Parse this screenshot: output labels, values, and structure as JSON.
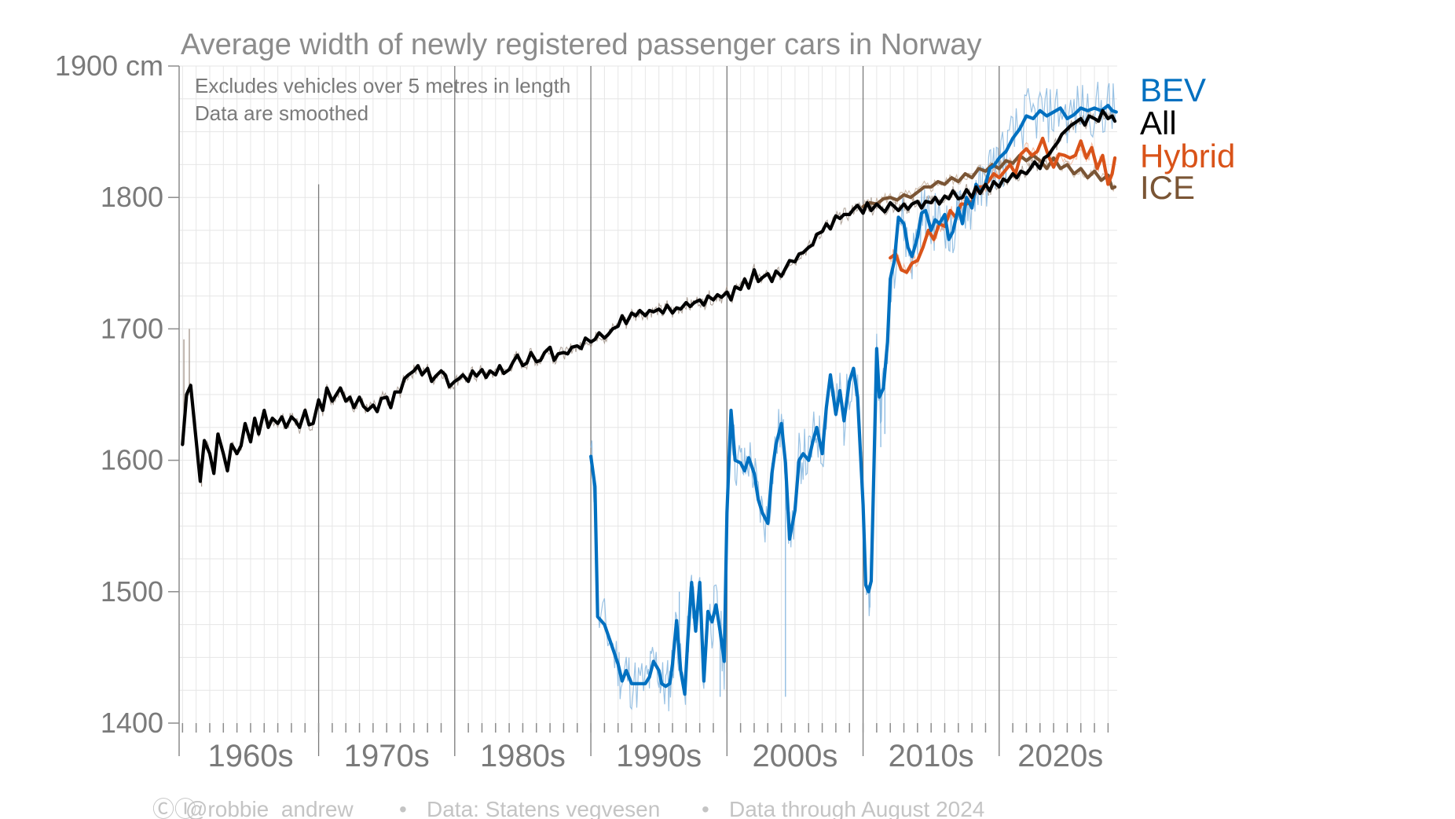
{
  "chart_data": {
    "type": "line",
    "title": "Average width of newly registered passenger cars in Norway",
    "notes": [
      "Excludes vehicles over 5 metres in length",
      "Data are smoothed"
    ],
    "y_unit": "cm",
    "y_tick_labels": [
      "1900 cm",
      "1800",
      "1700",
      "1600",
      "1500",
      "1400"
    ],
    "y_tick_values": [
      1900,
      1800,
      1700,
      1600,
      1500,
      1400
    ],
    "ylim": [
      1400,
      1900
    ],
    "xlim": [
      1955.75,
      2024.67
    ],
    "x_tick_labels": [
      "1960s",
      "1970s",
      "1980s",
      "1990s",
      "2000s",
      "2010s",
      "2020s"
    ],
    "x_tick_centers": [
      1961,
      1971,
      1981,
      1991,
      2001,
      2011,
      2020.5
    ],
    "decade_lines": [
      1966,
      1976,
      1986,
      1996,
      2006,
      2016
    ],
    "grid": true,
    "legend_position": "right",
    "series": [
      {
        "name": "BEV",
        "color": "#0070c0",
        "x": [
          1986,
          1986.3,
          1986.5,
          1987,
          1987.5,
          1988,
          1988.3,
          1988.6,
          1989,
          1989.5,
          1990,
          1990.3,
          1990.6,
          1991,
          1991.2,
          1991.5,
          1991.8,
          1992,
          1992.3,
          1992.6,
          1992.9,
          1993.1,
          1993.4,
          1993.7,
          1994,
          1994.3,
          1994.6,
          1994.9,
          1995.2,
          1995.5,
          1995.8,
          1996,
          1996.3,
          1996.6,
          1997,
          1997.3,
          1997.6,
          1998,
          1998.3,
          1998.6,
          1999,
          1999.3,
          1999.6,
          2000,
          2000.3,
          2000.6,
          2001,
          2001.3,
          2001.6,
          2002,
          2002.3,
          2002.6,
          2003,
          2003.3,
          2003.6,
          2004,
          2004.3,
          2004.6,
          2005,
          2005.3,
          2005.6,
          2006,
          2006.2,
          2006.4,
          2006.6,
          2006.8,
          2007,
          2007.2,
          2007.5,
          2007.8,
          2008,
          2008.3,
          2008.6,
          2009,
          2009.3,
          2009.6,
          2010,
          2010.3,
          2010.6,
          2011,
          2011.3,
          2011.6,
          2012,
          2012.3,
          2012.6,
          2013,
          2013.3,
          2013.6,
          2014,
          2014.3,
          2014.6,
          2015,
          2015.3,
          2015.6,
          2016,
          2016.5,
          2017,
          2017.5,
          2018,
          2018.5,
          2019,
          2019.5,
          2020,
          2020.5,
          2021,
          2021.5,
          2022,
          2022.5,
          2023,
          2023.5,
          2024,
          2024.3,
          2024.6
        ],
        "y": [
          1603,
          1580,
          1481,
          1475,
          1460,
          1445,
          1432,
          1440,
          1430,
          1430,
          1430,
          1435,
          1447,
          1440,
          1430,
          1428,
          1430,
          1445,
          1478,
          1440,
          1422,
          1460,
          1507,
          1470,
          1507,
          1432,
          1485,
          1477,
          1490,
          1470,
          1447,
          1560,
          1638,
          1600,
          1598,
          1592,
          1602,
          1590,
          1570,
          1560,
          1552,
          1590,
          1612,
          1628,
          1598,
          1540,
          1562,
          1600,
          1605,
          1600,
          1614,
          1625,
          1605,
          1640,
          1665,
          1635,
          1653,
          1630,
          1660,
          1670,
          1648,
          1566,
          1505,
          1500,
          1508,
          1595,
          1685,
          1648,
          1655,
          1690,
          1738,
          1752,
          1785,
          1780,
          1762,
          1755,
          1770,
          1788,
          1790,
          1775,
          1783,
          1780,
          1787,
          1768,
          1774,
          1792,
          1780,
          1800,
          1792,
          1810,
          1804,
          1810,
          1822,
          1824,
          1830,
          1835,
          1845,
          1852,
          1862,
          1860,
          1866,
          1862,
          1865,
          1868,
          1860,
          1863,
          1868,
          1866,
          1868,
          1866,
          1870,
          1866,
          1865
        ],
        "raw_extremes": [
          [
            1992.5,
            1500
          ],
          [
            1995.5,
            1420
          ],
          [
            2000.3,
            1420
          ],
          [
            2006.5,
            1488
          ],
          [
            2007.3,
            1610
          ],
          [
            2007.6,
            1620
          ],
          [
            2016.3,
            1808
          ]
        ]
      },
      {
        "name": "All",
        "color": "#000000",
        "x": [
          1956.0,
          1956.3,
          1956.6,
          1957.0,
          1957.3,
          1957.6,
          1958.0,
          1958.3,
          1958.6,
          1959.0,
          1959.3,
          1959.6,
          1960.0,
          1960.3,
          1960.6,
          1961.0,
          1961.3,
          1961.6,
          1962.0,
          1962.3,
          1962.6,
          1963.0,
          1963.3,
          1963.6,
          1964.0,
          1964.3,
          1964.6,
          1965.0,
          1965.3,
          1965.6,
          1966.0,
          1966.3,
          1966.6,
          1967.0,
          1967.3,
          1967.6,
          1968.0,
          1968.3,
          1968.6,
          1969.0,
          1969.3,
          1969.6,
          1970.0,
          1970.3,
          1970.6,
          1971.0,
          1971.3,
          1971.6,
          1972.0,
          1972.3,
          1972.6,
          1973.0,
          1973.3,
          1973.6,
          1974.0,
          1974.3,
          1974.6,
          1975.0,
          1975.3,
          1975.6,
          1976.0,
          1976.3,
          1976.6,
          1977.0,
          1977.3,
          1977.6,
          1978.0,
          1978.3,
          1978.6,
          1979.0,
          1979.3,
          1979.6,
          1980.0,
          1980.3,
          1980.6,
          1981.0,
          1981.3,
          1981.6,
          1982.0,
          1982.3,
          1982.6,
          1983.0,
          1983.3,
          1983.6,
          1984.0,
          1984.3,
          1984.6,
          1985.0,
          1985.3,
          1985.6,
          1986.0,
          1986.3,
          1986.6,
          1987.0,
          1987.3,
          1987.6,
          1988.0,
          1988.3,
          1988.6,
          1989.0,
          1989.3,
          1989.6,
          1990.0,
          1990.3,
          1990.6,
          1991.0,
          1991.3,
          1991.6,
          1992.0,
          1992.3,
          1992.6,
          1993.0,
          1993.3,
          1993.6,
          1994.0,
          1994.3,
          1994.6,
          1995.0,
          1995.3,
          1995.6,
          1996.0,
          1996.3,
          1996.6,
          1997.0,
          1997.3,
          1997.6,
          1998.0,
          1998.3,
          1998.6,
          1999.0,
          1999.3,
          1999.6,
          2000.0,
          2000.3,
          2000.6,
          2001.0,
          2001.3,
          2001.6,
          2002.0,
          2002.3,
          2002.6,
          2003.0,
          2003.3,
          2003.6,
          2004.0,
          2004.3,
          2004.6,
          2005.0,
          2005.3,
          2005.6,
          2006.0,
          2006.3,
          2006.6,
          2007.0,
          2007.3,
          2007.6,
          2008.0,
          2008.3,
          2008.6,
          2009.0,
          2009.3,
          2009.6,
          2010.0,
          2010.3,
          2010.6,
          2011.0,
          2011.3,
          2011.6,
          2012.0,
          2012.3,
          2012.6,
          2013.0,
          2013.3,
          2013.6,
          2014.0,
          2014.3,
          2014.6,
          2015.0,
          2015.3,
          2015.6,
          2016.0,
          2016.3,
          2016.6,
          2017.0,
          2017.3,
          2017.6,
          2018.0,
          2018.3,
          2018.6,
          2019.0,
          2019.3,
          2019.6,
          2020.0,
          2020.3,
          2020.6,
          2021.0,
          2021.3,
          2021.6,
          2022.0,
          2022.3,
          2022.6,
          2023.0,
          2023.3,
          2023.6,
          2024.0,
          2024.3,
          2024.5
        ],
        "y": [
          1612,
          1650,
          1657,
          1615,
          1584,
          1615,
          1605,
          1590,
          1620,
          1605,
          1592,
          1612,
          1605,
          1611,
          1628,
          1614,
          1632,
          1620,
          1638,
          1625,
          1632,
          1628,
          1633,
          1625,
          1633,
          1630,
          1625,
          1638,
          1627,
          1628,
          1646,
          1638,
          1655,
          1645,
          1650,
          1655,
          1645,
          1648,
          1640,
          1648,
          1641,
          1638,
          1642,
          1637,
          1647,
          1648,
          1640,
          1652,
          1652,
          1662,
          1665,
          1668,
          1672,
          1665,
          1670,
          1660,
          1664,
          1668,
          1665,
          1656,
          1660,
          1662,
          1665,
          1660,
          1668,
          1664,
          1669,
          1663,
          1668,
          1665,
          1672,
          1666,
          1669,
          1675,
          1680,
          1672,
          1674,
          1682,
          1675,
          1676,
          1682,
          1686,
          1676,
          1681,
          1682,
          1681,
          1686,
          1687,
          1685,
          1693,
          1690,
          1692,
          1697,
          1693,
          1696,
          1700,
          1702,
          1710,
          1704,
          1712,
          1710,
          1714,
          1710,
          1714,
          1713,
          1715,
          1712,
          1718,
          1712,
          1716,
          1715,
          1720,
          1717,
          1720,
          1722,
          1718,
          1725,
          1722,
          1726,
          1724,
          1728,
          1722,
          1732,
          1730,
          1738,
          1731,
          1745,
          1736,
          1739,
          1742,
          1736,
          1744,
          1740,
          1746,
          1752,
          1751,
          1757,
          1758,
          1762,
          1764,
          1772,
          1774,
          1780,
          1776,
          1786,
          1784,
          1787,
          1787,
          1791,
          1794,
          1788,
          1796,
          1790,
          1795,
          1792,
          1789,
          1796,
          1793,
          1790,
          1795,
          1791,
          1795,
          1797,
          1792,
          1797,
          1796,
          1800,
          1795,
          1801,
          1799,
          1805,
          1799,
          1800,
          1806,
          1800,
          1808,
          1803,
          1810,
          1805,
          1812,
          1808,
          1814,
          1812,
          1818,
          1815,
          1820,
          1818,
          1822,
          1827,
          1822,
          1830,
          1832,
          1838,
          1842,
          1848,
          1852,
          1855,
          1857,
          1860,
          1855,
          1862,
          1860,
          1858,
          1866,
          1860,
          1862,
          1858
        ],
        "raw_extremes": [
          [
            1956.1,
            1692
          ],
          [
            1956.5,
            1700
          ],
          [
            1957.4,
            1580
          ],
          [
            2006.6,
            1800
          ]
        ]
      },
      {
        "name": "Hybrid",
        "color": "#d95319",
        "x": [
          2008.0,
          2008.4,
          2008.8,
          2009.2,
          2009.6,
          2010.0,
          2010.4,
          2010.8,
          2011.2,
          2011.6,
          2012.0,
          2012.4,
          2012.8,
          2013.2,
          2013.6,
          2014.0,
          2014.4,
          2014.8,
          2015.2,
          2015.6,
          2016.0,
          2016.4,
          2016.8,
          2017.2,
          2017.6,
          2018.0,
          2018.4,
          2018.8,
          2019.2,
          2019.6,
          2020.0,
          2020.4,
          2020.8,
          2021.2,
          2021.6,
          2022.0,
          2022.4,
          2022.8,
          2023.2,
          2023.6,
          2024.0,
          2024.3,
          2024.5
        ],
        "y": [
          1754,
          1757,
          1745,
          1743,
          1750,
          1752,
          1762,
          1775,
          1768,
          1780,
          1778,
          1790,
          1785,
          1795,
          1795,
          1797,
          1808,
          1808,
          1812,
          1818,
          1815,
          1820,
          1825,
          1818,
          1833,
          1837,
          1832,
          1835,
          1845,
          1832,
          1823,
          1833,
          1832,
          1830,
          1832,
          1843,
          1830,
          1838,
          1822,
          1832,
          1810,
          1818,
          1830
        ]
      },
      {
        "name": "ICE",
        "color": "#7a5535",
        "x": [
          2006.0,
          2006.5,
          2007.0,
          2007.5,
          2008.0,
          2008.5,
          2009.0,
          2009.5,
          2010.0,
          2010.5,
          2011.0,
          2011.5,
          2012.0,
          2012.5,
          2013.0,
          2013.5,
          2014.0,
          2014.5,
          2015.0,
          2015.5,
          2016.0,
          2016.5,
          2017.0,
          2017.5,
          2018.0,
          2018.5,
          2019.0,
          2019.5,
          2020.0,
          2020.5,
          2021.0,
          2021.5,
          2022.0,
          2022.5,
          2023.0,
          2023.5,
          2024.0,
          2024.3,
          2024.5
        ],
        "y": [
          1793,
          1796,
          1795,
          1799,
          1800,
          1798,
          1802,
          1800,
          1804,
          1808,
          1808,
          1812,
          1810,
          1815,
          1812,
          1818,
          1815,
          1822,
          1820,
          1825,
          1822,
          1828,
          1826,
          1832,
          1828,
          1832,
          1828,
          1822,
          1830,
          1822,
          1825,
          1818,
          1822,
          1815,
          1820,
          1813,
          1817,
          1807,
          1808
        ]
      }
    ],
    "legend": [
      "BEV",
      "All",
      "Hybrid",
      "ICE"
    ]
  },
  "footer": {
    "cc_icons": "ⒸⒾ",
    "author": "@robbie_andrew",
    "sep1": "•",
    "source": "Data: Statens vegvesen",
    "sep2": "•",
    "through": "Data through August 2024"
  },
  "colors": {
    "axis": "#8c8c8c",
    "grid": "#e6e6e6",
    "decade_line": "#7a7a7a",
    "raw_band": "#b0b0b0"
  }
}
